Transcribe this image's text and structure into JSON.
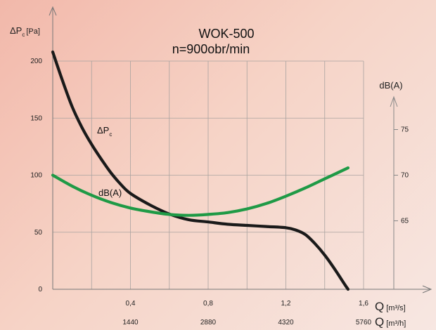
{
  "chart_data": {
    "type": "line",
    "title": "WOK-500",
    "subtitle": "n=900obr/min",
    "x_unit_primary": "Q",
    "x_unit_primary_suffix": "[m³/s]",
    "x_unit_secondary": "Q",
    "x_unit_secondary_suffix": "[m³/h]",
    "x_ticks_primary": [
      "0,4",
      "0,8",
      "1,2",
      "1,6"
    ],
    "x_ticks_primary_values": [
      0.4,
      0.8,
      1.2,
      1.6
    ],
    "x_ticks_secondary": [
      "1440",
      "2880",
      "4320",
      "5760"
    ],
    "xlim": [
      0,
      1.6
    ],
    "y_left_label_main": "ΔP",
    "y_left_label_sub": "c",
    "y_left_label_unit": "[Pa]",
    "y_left_ticks": [
      "0",
      "50",
      "100",
      "150",
      "200"
    ],
    "y_left_tick_values": [
      0,
      50,
      100,
      150,
      200
    ],
    "ylim_left": [
      0,
      200
    ],
    "y_right_label": "dB(A)",
    "y_right_ticks": [
      "65",
      "70",
      "75"
    ],
    "y_right_tick_values": [
      65,
      70,
      75
    ],
    "ylim_right": [
      57.5,
      82.5
    ],
    "grid": true,
    "series": [
      {
        "name_main": "ΔP",
        "name_sub": "c",
        "axis": "left",
        "color": "#1a1a1a",
        "x": [
          0.0,
          0.05,
          0.1,
          0.15,
          0.2,
          0.25,
          0.3,
          0.35,
          0.4,
          0.5,
          0.6,
          0.7,
          0.8,
          0.9,
          1.0,
          1.1,
          1.2,
          1.25,
          1.3,
          1.35,
          1.4,
          1.45,
          1.5,
          1.52
        ],
        "y": [
          208,
          183,
          160,
          142,
          127,
          114,
          102,
          92,
          84,
          74,
          66,
          61,
          59,
          57,
          56,
          55,
          54,
          52,
          48,
          40,
          30,
          18,
          5,
          0
        ]
      },
      {
        "name": "dB(A)",
        "axis": "right",
        "color": "#1f9a46",
        "x": [
          0.0,
          0.1,
          0.2,
          0.3,
          0.4,
          0.5,
          0.6,
          0.7,
          0.8,
          0.9,
          1.0,
          1.1,
          1.2,
          1.3,
          1.4,
          1.5,
          1.52
        ],
        "y": [
          70.0,
          68.8,
          67.8,
          67.0,
          66.4,
          66.0,
          65.7,
          65.6,
          65.7,
          65.9,
          66.3,
          66.9,
          67.7,
          68.6,
          69.6,
          70.6,
          70.8
        ]
      }
    ]
  }
}
